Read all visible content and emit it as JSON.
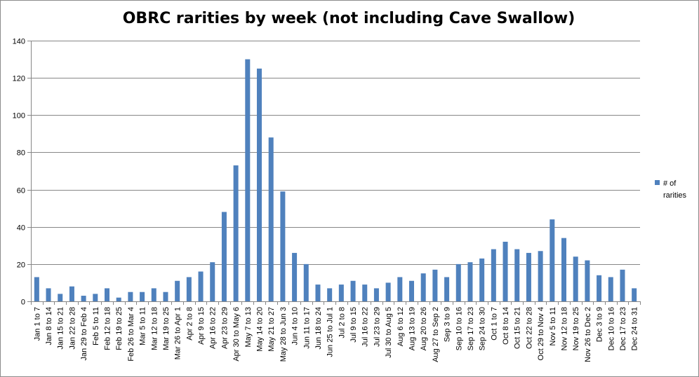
{
  "chart_data": {
    "type": "bar",
    "title": "OBRC rarities by week (not including Cave Swallow)",
    "xlabel": "",
    "ylabel": "",
    "ylim": [
      0,
      140
    ],
    "yticks": [
      0,
      20,
      40,
      60,
      80,
      100,
      120,
      140
    ],
    "grid": true,
    "legend_position": "right",
    "bar_color": "#4f81bd",
    "categories": [
      "Jan 1 to 7",
      "Jan 8 to 14",
      "Jan 15 to 21",
      "Jan 22 to 28",
      "Jan 29 to Feb 4",
      "Feb 5 to 11",
      "Feb 12 to 18",
      "Feb 19 to 25",
      "Feb 26 to Mar 4",
      "Mar 5 to 11",
      "Mar 12 to 18",
      "Mar 19 to 25",
      "Mar 26 to Apr 1",
      "Apr 2 to 8",
      "Apr 9 to 15",
      "Apr 16 to 22",
      "Apr 23 to 29",
      "Apr 30 to May 6",
      "May 7 to 13",
      "May 14 to 20",
      "May 21 to 27",
      "May 28 to Jun 3",
      "Jun 4 to 10",
      "Jun 11 to 17",
      "Jun 18 to 24",
      "Jun 25 to Jul 1",
      "Jul 2 to 8",
      "Jul 9 to 15",
      "Jul 16 to 22",
      "Jul 23 to 29",
      "Jul 30 to Aug 5",
      "Aug 6 to 12",
      "Aug 13 to 19",
      "Aug 20 to 26",
      "Aug 27 to Sep 2",
      "Sep 3 to 9",
      "Sep 10 to 16",
      "Sep 17 to 23",
      "Sep 24 to 30",
      "Oct 1 to 7",
      "Oct 8 to 14",
      "Oct 15 to 21",
      "Oct 22 to 28",
      "Oct 29 to Nov 4",
      "Nov 5 to 11",
      "Nov 12 to 18",
      "Nov 19 to 25",
      "Nov 26 to Dec 2",
      "Dec 3 to 9",
      "Dec 10 to 16",
      "Dec 17 to 23",
      "Dec 24 to 31"
    ],
    "series": [
      {
        "name": "# of rarities",
        "values": [
          13,
          7,
          4,
          8,
          3,
          4,
          7,
          2,
          5,
          5,
          7,
          5,
          11,
          13,
          16,
          21,
          48,
          73,
          130,
          125,
          88,
          59,
          26,
          20,
          9,
          7,
          9,
          11,
          9,
          7,
          10,
          13,
          11,
          15,
          17,
          13,
          20,
          21,
          23,
          28,
          32,
          28,
          26,
          27,
          44,
          34,
          24,
          22,
          14,
          13,
          17,
          7
        ]
      }
    ]
  }
}
